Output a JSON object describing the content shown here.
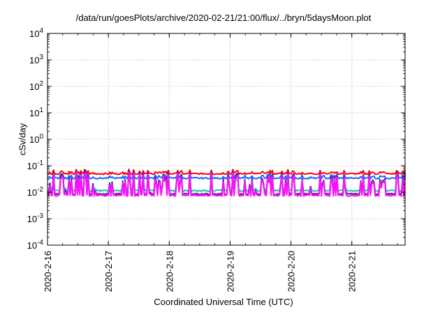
{
  "chart_data": {
    "type": "line",
    "title": "/data/run/goesPlots/archive/2020-02-21/21:00/flux/../bryn/5daysMoon.plot",
    "xlabel": "Coordinated Universal Time (UTC)",
    "ylabel": "cSv/day",
    "y_scale": "log",
    "ylim": [
      0.0001,
      10000
    ],
    "xlim": [
      "2020-02-16 00:00",
      "2020-02-21 21:00"
    ],
    "x_ticks": [
      "2020-2-16",
      "2020-2-17",
      "2020-2-18",
      "2020-2-19",
      "2020-2-20",
      "2020-2-21"
    ],
    "y_ticks": [
      {
        "base": "10",
        "exp": "-4"
      },
      {
        "base": "10",
        "exp": "-3"
      },
      {
        "base": "10",
        "exp": "-2"
      },
      {
        "base": "10",
        "exp": "-1"
      },
      {
        "base": "10",
        "exp": "0"
      },
      {
        "base": "10",
        "exp": "1"
      },
      {
        "base": "10",
        "exp": "2"
      },
      {
        "base": "10",
        "exp": "3"
      },
      {
        "base": "10",
        "exp": "4"
      }
    ],
    "grid": true,
    "series": [
      {
        "color": "#ff0000",
        "baseline": 0.05,
        "spike_scale": 1.4
      },
      {
        "color": "#1a66ff",
        "baseline": 0.034,
        "spike_scale": 1.6
      },
      {
        "color": "#20c0a0",
        "baseline": 0.0115,
        "spike_scale": 4.5
      },
      {
        "color": "#cc2090",
        "baseline": 0.0085,
        "spike_scale": 7.0
      },
      {
        "color": "#4a30a0",
        "baseline": 0.0085,
        "spike_scale": 8.0
      },
      {
        "color": "#ff10ff",
        "baseline": 0.0075,
        "spike_scale": 7.5
      }
    ]
  }
}
